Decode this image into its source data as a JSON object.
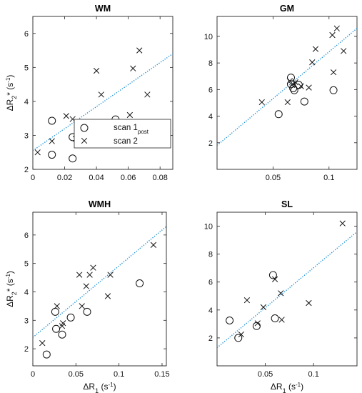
{
  "chart_data": [
    {
      "type": "scatter",
      "title": "WM",
      "xlim": [
        0,
        0.088
      ],
      "ylim": [
        2,
        6.5
      ],
      "xticks": [
        0,
        0.02,
        0.04,
        0.06,
        0.08
      ],
      "xtick_labels": [
        "0",
        "0.02",
        "0.04",
        "0.06",
        "0.08"
      ],
      "yticks": [
        2,
        3,
        4,
        5,
        6
      ],
      "ytick_labels": [
        "2",
        "3",
        "4",
        "5",
        "6"
      ],
      "ylabel": "ΔR2* (s-1)",
      "xlabel": "",
      "series": [
        {
          "name": "scan 1 post",
          "marker": "circle",
          "x": [
            0.012,
            0.012,
            0.025,
            0.025,
            0.03,
            0.031,
            0.052
          ],
          "y": [
            3.43,
            2.43,
            2.95,
            2.32,
            3.05,
            3.2,
            3.47
          ]
        },
        {
          "name": "scan 2",
          "marker": "x",
          "x": [
            0.003,
            0.012,
            0.021,
            0.025,
            0.027,
            0.029,
            0.04,
            0.043,
            0.061,
            0.063,
            0.067,
            0.072
          ],
          "y": [
            2.5,
            2.83,
            3.57,
            3.48,
            2.9,
            3.0,
            4.9,
            4.2,
            3.6,
            4.97,
            5.5,
            4.2
          ]
        }
      ],
      "fit": {
        "x": [
          0,
          0.088
        ],
        "y": [
          2.55,
          5.4
        ]
      },
      "legend": {
        "entries": [
          "scan 1",
          "scan 2"
        ],
        "subscript": "post"
      },
      "grid": false
    },
    {
      "type": "scatter",
      "title": "GM",
      "xlim": [
        0,
        0.125
      ],
      "ylim": [
        0,
        11.5
      ],
      "xticks": [
        0.05,
        0.1
      ],
      "xtick_labels": [
        "0.05",
        "0.1"
      ],
      "yticks": [
        2,
        4,
        6,
        8,
        10
      ],
      "ytick_labels": [
        "2",
        "4",
        "6",
        "8",
        "10"
      ],
      "ylabel": "",
      "xlabel": "",
      "series": [
        {
          "name": "scan 1 post",
          "marker": "circle",
          "x": [
            0.055,
            0.066,
            0.066,
            0.068,
            0.069,
            0.073,
            0.078,
            0.104
          ],
          "y": [
            4.15,
            6.9,
            6.4,
            6.1,
            5.95,
            6.35,
            5.1,
            5.95
          ]
        },
        {
          "name": "scan 2",
          "marker": "x",
          "x": [
            0.04,
            0.063,
            0.065,
            0.067,
            0.07,
            0.075,
            0.082,
            0.085,
            0.088,
            0.103,
            0.104,
            0.107,
            0.113
          ],
          "y": [
            5.05,
            5.05,
            6.65,
            6.35,
            6.55,
            6.25,
            6.15,
            8.05,
            9.05,
            10.1,
            7.3,
            10.6,
            8.9
          ]
        }
      ],
      "fit": {
        "x": [
          0,
          0.125
        ],
        "y": [
          1.8,
          10.6
        ]
      },
      "grid": false
    },
    {
      "type": "scatter",
      "title": "WMH",
      "xlim": [
        0,
        0.155
      ],
      "ylim": [
        1.4,
        6.8
      ],
      "xticks": [
        0,
        0.05,
        0.1,
        0.15
      ],
      "xtick_labels": [
        "0",
        "0.05",
        "0.1",
        "0.15"
      ],
      "yticks": [
        2,
        3,
        4,
        5,
        6
      ],
      "ytick_labels": [
        "2",
        "3",
        "4",
        "5",
        "6"
      ],
      "ylabel": "ΔR2* (s-1)",
      "xlabel": "ΔR1 (s-1)",
      "series": [
        {
          "name": "scan 1 post",
          "marker": "circle",
          "x": [
            0.016,
            0.026,
            0.027,
            0.034,
            0.044,
            0.063,
            0.124
          ],
          "y": [
            1.8,
            3.3,
            2.7,
            2.5,
            3.1,
            3.3,
            4.3
          ]
        },
        {
          "name": "scan 2",
          "marker": "x",
          "x": [
            0.011,
            0.028,
            0.034,
            0.035,
            0.054,
            0.057,
            0.062,
            0.066,
            0.07,
            0.087,
            0.09,
            0.14
          ],
          "y": [
            2.2,
            3.5,
            2.8,
            2.9,
            4.6,
            3.5,
            4.2,
            4.6,
            4.85,
            3.85,
            4.6,
            5.65
          ]
        }
      ],
      "fit": {
        "x": [
          0,
          0.155
        ],
        "y": [
          2.4,
          6.3
        ]
      },
      "grid": false
    },
    {
      "type": "scatter",
      "title": "SL",
      "xlim": [
        0,
        0.145
      ],
      "ylim": [
        0,
        11
      ],
      "xticks": [
        0.05,
        0.1
      ],
      "xtick_labels": [
        "0.05",
        "0.1"
      ],
      "yticks": [
        2,
        4,
        6,
        8,
        10
      ],
      "ytick_labels": [
        "2",
        "4",
        "6",
        "8",
        "10"
      ],
      "ylabel": "",
      "xlabel": "ΔR1 (s-1)",
      "series": [
        {
          "name": "scan 1 post",
          "marker": "circle",
          "x": [
            0.013,
            0.022,
            0.041,
            0.058,
            0.06
          ],
          "y": [
            3.25,
            2.0,
            2.85,
            6.5,
            3.4
          ]
        },
        {
          "name": "scan 2",
          "marker": "x",
          "x": [
            0.025,
            0.031,
            0.042,
            0.048,
            0.06,
            0.066,
            0.067,
            0.095,
            0.13
          ],
          "y": [
            2.25,
            4.7,
            3.05,
            4.2,
            6.2,
            5.2,
            3.3,
            4.5,
            10.2
          ]
        }
      ],
      "fit": {
        "x": [
          0,
          0.145
        ],
        "y": [
          1.3,
          9.6
        ]
      },
      "grid": false
    }
  ]
}
